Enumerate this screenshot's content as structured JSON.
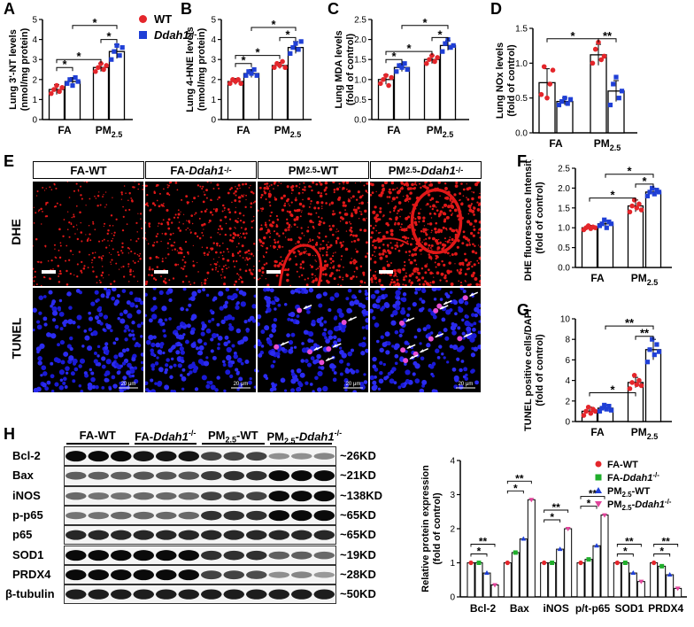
{
  "figure": {
    "panels": {
      "A": "A",
      "B": "B",
      "C": "C",
      "D": "D",
      "E": "E",
      "F": "F",
      "G": "G",
      "H": "H"
    },
    "legend_top": {
      "wt_label": "WT",
      "ko_label_base": "Ddah1",
      "ko_label_sup": "-/-",
      "wt_color": "#e4262b",
      "ko_color": "#1f3fd6"
    },
    "group_labels": {
      "fa": "FA",
      "pm_base": "PM",
      "pm_sub": "2.5"
    },
    "sig": "*",
    "sig2": "**"
  },
  "micrographs": {
    "columns": [
      {
        "base": "FA-WT",
        "sub": "",
        "italic": "",
        "sup": ""
      },
      {
        "base": "FA-",
        "sub": "",
        "italic": "Ddah1",
        "sup": "-/-"
      },
      {
        "base": "PM",
        "sub": "2.5",
        "tail": "-WT",
        "italic": "",
        "sup": ""
      },
      {
        "base": "PM",
        "sub": "2.5",
        "tail": "-",
        "italic": "Ddah1",
        "sup": "-/-"
      }
    ],
    "rows": [
      "DHE",
      "TUNEL"
    ],
    "scale_text": "20 μm"
  },
  "blot": {
    "groups": [
      {
        "base": "FA-WT"
      },
      {
        "base": "FA-",
        "italic": "Ddah1",
        "sup": "-/-"
      },
      {
        "base": "PM",
        "sub": "2.5",
        "tail": "-WT"
      },
      {
        "base": "PM",
        "sub": "2.5",
        "tail": "-",
        "italic": "Ddah1",
        "sup": "-/-"
      }
    ],
    "rows": [
      {
        "label": "Bcl-2",
        "kd": "~26KD",
        "intensity": [
          1,
          1,
          1,
          0.95,
          0.95,
          0.95,
          0.7,
          0.7,
          0.7,
          0.3,
          0.3,
          0.35
        ]
      },
      {
        "label": "Bax",
        "kd": "~21KD",
        "intensity": [
          0.55,
          0.55,
          0.55,
          0.6,
          0.6,
          0.6,
          0.75,
          0.8,
          0.8,
          1,
          1,
          1
        ]
      },
      {
        "label": "iNOS",
        "kd": "~138KD",
        "intensity": [
          0.5,
          0.45,
          0.45,
          0.5,
          0.5,
          0.5,
          0.7,
          0.7,
          0.7,
          1,
          1,
          1
        ]
      },
      {
        "label": "p-p65",
        "kd": "~65KD",
        "intensity": [
          0.45,
          0.45,
          0.5,
          0.5,
          0.5,
          0.5,
          0.8,
          0.8,
          0.8,
          1,
          1,
          1
        ]
      },
      {
        "label": "p65",
        "kd": "~65KD",
        "intensity": [
          0.85,
          0.85,
          0.85,
          0.85,
          0.85,
          0.85,
          0.85,
          0.85,
          0.85,
          0.85,
          0.85,
          0.85
        ]
      },
      {
        "label": "SOD1",
        "kd": "~19KD",
        "intensity": [
          1,
          1,
          1,
          1,
          1,
          1,
          0.8,
          0.8,
          0.8,
          0.55,
          0.55,
          0.5
        ]
      },
      {
        "label": "PRDX4",
        "kd": "~28KD",
        "intensity": [
          1,
          1,
          1,
          1,
          1,
          1,
          0.7,
          0.7,
          0.65,
          0.3,
          0.35,
          0.25
        ]
      },
      {
        "label": "β-tubulin",
        "kd": "~50KD",
        "intensity": [
          0.9,
          0.9,
          0.9,
          0.9,
          0.9,
          0.9,
          0.9,
          0.9,
          0.9,
          0.9,
          0.9,
          0.9
        ]
      }
    ]
  },
  "chart_data": [
    {
      "id": "A",
      "type": "bar",
      "ylabel": [
        "Lung 3'-NT levels",
        "(nmol/mg protein)"
      ],
      "ylim": [
        0,
        5
      ],
      "ticks": [
        0,
        1,
        2,
        3,
        4,
        5
      ],
      "categories": [
        "FA",
        "PM2.5"
      ],
      "series": [
        {
          "name": "WT",
          "values": [
            1.5,
            2.6
          ],
          "sd": [
            0.25,
            0.2
          ],
          "points": [
            [
              1.3,
              1.5,
              1.7,
              1.4,
              1.6
            ],
            [
              2.4,
              2.6,
              2.8,
              2.5,
              2.7
            ]
          ]
        },
        {
          "name": "Ddah1-/-",
          "values": [
            1.9,
            3.4
          ],
          "sd": [
            0.2,
            0.35
          ],
          "points": [
            [
              1.8,
              2.0,
              1.7,
              2.1,
              1.9
            ],
            [
              3.0,
              3.4,
              3.7,
              3.2,
              3.6
            ]
          ]
        }
      ],
      "sig": [
        [
          0,
          1,
          2.6,
          "*"
        ],
        [
          0,
          2,
          3.0,
          "*"
        ],
        [
          2,
          3,
          4.0,
          "*"
        ],
        [
          1,
          3,
          4.7,
          "*"
        ]
      ]
    },
    {
      "id": "B",
      "type": "bar",
      "ylabel": [
        "Lung 4-HNE levels",
        "(nmol/mg protein)"
      ],
      "ylim": [
        0,
        5
      ],
      "ticks": [
        0,
        1,
        2,
        3,
        4,
        5
      ],
      "categories": [
        "FA",
        "PM2.5"
      ],
      "series": [
        {
          "name": "WT",
          "values": [
            1.9,
            2.7
          ],
          "sd": [
            0.15,
            0.15
          ],
          "points": [
            [
              1.8,
              2.0,
              1.9,
              2.0,
              1.8
            ],
            [
              2.6,
              2.8,
              2.7,
              2.9,
              2.6
            ]
          ]
        },
        {
          "name": "Ddah1-/-",
          "values": [
            2.3,
            3.6
          ],
          "sd": [
            0.2,
            0.3
          ],
          "points": [
            [
              2.2,
              2.4,
              2.3,
              2.5,
              2.2
            ],
            [
              3.3,
              3.6,
              3.8,
              3.5,
              3.9
            ]
          ]
        }
      ],
      "sig": [
        [
          0,
          1,
          2.8,
          "*"
        ],
        [
          0,
          2,
          3.2,
          "*"
        ],
        [
          2,
          3,
          4.1,
          "*"
        ],
        [
          1,
          3,
          4.6,
          "*"
        ]
      ]
    },
    {
      "id": "C",
      "type": "bar",
      "ylabel": [
        "Lung MDA levels",
        "(fold of control)"
      ],
      "ylim": [
        0,
        2.5
      ],
      "ticks": [
        0.0,
        0.5,
        1.0,
        1.5,
        2.0,
        2.5
      ],
      "categories": [
        "FA",
        "PM2.5"
      ],
      "series": [
        {
          "name": "WT",
          "values": [
            1.0,
            1.5
          ],
          "sd": [
            0.12,
            0.1
          ],
          "points": [
            [
              0.9,
              1.0,
              1.1,
              0.85,
              1.05
            ],
            [
              1.4,
              1.5,
              1.6,
              1.45,
              1.55
            ]
          ]
        },
        {
          "name": "Ddah1-/-",
          "values": [
            1.3,
            1.85
          ],
          "sd": [
            0.1,
            0.12
          ],
          "points": [
            [
              1.2,
              1.35,
              1.3,
              1.4,
              1.25
            ],
            [
              1.7,
              1.9,
              2.0,
              1.8,
              1.85
            ]
          ]
        }
      ],
      "sig": [
        [
          0,
          1,
          1.5,
          "*"
        ],
        [
          0,
          2,
          1.7,
          "*"
        ],
        [
          2,
          3,
          2.05,
          "*"
        ],
        [
          1,
          3,
          2.35,
          "*"
        ]
      ]
    },
    {
      "id": "D",
      "type": "bar",
      "ylabel": [
        "Lung NOx levels",
        "(fold of control)"
      ],
      "ylim": [
        0,
        1.5
      ],
      "ticks": [
        0.0,
        0.5,
        1.0,
        1.5
      ],
      "categories": [
        "FA",
        "PM2.5"
      ],
      "series": [
        {
          "name": "WT",
          "values": [
            0.72,
            1.12
          ],
          "sd": [
            0.2,
            0.15
          ],
          "points": [
            [
              0.55,
              0.95,
              0.5,
              0.7,
              0.9
            ],
            [
              1.0,
              1.2,
              1.3,
              1.05,
              1.1
            ]
          ]
        },
        {
          "name": "Ddah1-/-",
          "values": [
            0.45,
            0.6
          ],
          "sd": [
            0.05,
            0.15
          ],
          "points": [
            [
              0.4,
              0.45,
              0.5,
              0.42,
              0.48
            ],
            [
              0.4,
              0.7,
              0.8,
              0.5,
              0.6
            ]
          ]
        }
      ],
      "sig": [
        [
          0,
          2,
          1.35,
          "*"
        ],
        [
          2,
          3,
          1.35,
          "**"
        ]
      ]
    },
    {
      "id": "F",
      "type": "bar",
      "ylabel": [
        "DHE fluorescence Intensity",
        "(fold of control)"
      ],
      "ylim": [
        0,
        2.5
      ],
      "ticks": [
        0.0,
        0.5,
        1.0,
        1.5,
        2.0,
        2.5
      ],
      "categories": [
        "FA",
        "PM2.5"
      ],
      "series": [
        {
          "name": "WT",
          "values": [
            1.0,
            1.55
          ],
          "sd": [
            0.06,
            0.15
          ],
          "points": [
            [
              0.95,
              1.0,
              1.05,
              0.98,
              1.02,
              1.0
            ],
            [
              1.4,
              1.55,
              1.7,
              1.5,
              1.6,
              1.45
            ]
          ]
        },
        {
          "name": "Ddah1-/-",
          "values": [
            1.1,
            1.9
          ],
          "sd": [
            0.08,
            0.1
          ],
          "points": [
            [
              1.05,
              1.1,
              1.2,
              1.0,
              1.15,
              1.1
            ],
            [
              1.8,
              1.9,
              2.0,
              1.85,
              1.95,
              1.9
            ]
          ]
        }
      ],
      "sig": [
        [
          0,
          2,
          1.75,
          "*"
        ],
        [
          2,
          3,
          2.1,
          "*"
        ],
        [
          1,
          3,
          2.35,
          "*"
        ]
      ]
    },
    {
      "id": "G",
      "type": "bar",
      "ylabel": [
        "TUNEL positive cells/DAPI",
        "(fold of control)"
      ],
      "ylim": [
        0,
        10
      ],
      "ticks": [
        0,
        2,
        4,
        6,
        8,
        10
      ],
      "categories": [
        "FA",
        "PM2.5"
      ],
      "series": [
        {
          "name": "WT",
          "values": [
            1.0,
            3.8
          ],
          "sd": [
            0.4,
            0.5
          ],
          "points": [
            [
              0.6,
              1.0,
              1.4,
              0.8,
              1.2,
              1.0
            ],
            [
              3.2,
              3.8,
              4.5,
              3.6,
              4.0,
              3.5
            ]
          ]
        },
        {
          "name": "Ddah1-/-",
          "values": [
            1.3,
            7.0
          ],
          "sd": [
            0.3,
            1.0
          ],
          "points": [
            [
              1.0,
              1.3,
              1.6,
              1.2,
              1.5,
              1.1
            ],
            [
              5.8,
              7.0,
              8.0,
              6.5,
              7.5,
              6.8
            ]
          ]
        }
      ],
      "sig": [
        [
          0,
          2,
          2.8,
          "*"
        ],
        [
          2,
          3,
          8.3,
          "**"
        ],
        [
          1,
          3,
          9.3,
          "**"
        ]
      ]
    },
    {
      "id": "H",
      "type": "bar",
      "ylabel": [
        "Relative protein expression",
        "(fold of control)"
      ],
      "ylim": [
        0,
        4
      ],
      "ticks": [
        0,
        1,
        2,
        3,
        4
      ],
      "categories": [
        "Bcl-2",
        "Bax",
        "iNOS",
        "p/t-p65",
        "SOD1",
        "PRDX4"
      ],
      "series": [
        {
          "name": "FA-WT",
          "values": [
            1.0,
            1.0,
            1.0,
            1.0,
            1.0,
            1.0
          ]
        },
        {
          "name": "FA-Ddah1-/-",
          "values": [
            1.0,
            1.3,
            1.0,
            1.1,
            1.0,
            0.9
          ]
        },
        {
          "name": "PM2.5-WT",
          "values": [
            0.7,
            1.7,
            1.4,
            1.5,
            0.7,
            0.65
          ]
        },
        {
          "name": "PM2.5-Ddah1-/-",
          "values": [
            0.35,
            2.85,
            2.0,
            2.4,
            0.45,
            0.25
          ]
        }
      ],
      "legend": [
        {
          "base": "FA-WT"
        },
        {
          "base": "FA-",
          "italic": "Ddah1",
          "sup": "-/-"
        },
        {
          "base": "PM",
          "sub": "2.5",
          "tail": "-WT"
        },
        {
          "base": "PM",
          "sub": "2.5",
          "tail": "-",
          "italic": "Ddah1",
          "sup": "-/-"
        }
      ],
      "colors": [
        "#e4262b",
        "#1fae2b",
        "#1f3fd6",
        "#e0449a"
      ]
    }
  ]
}
